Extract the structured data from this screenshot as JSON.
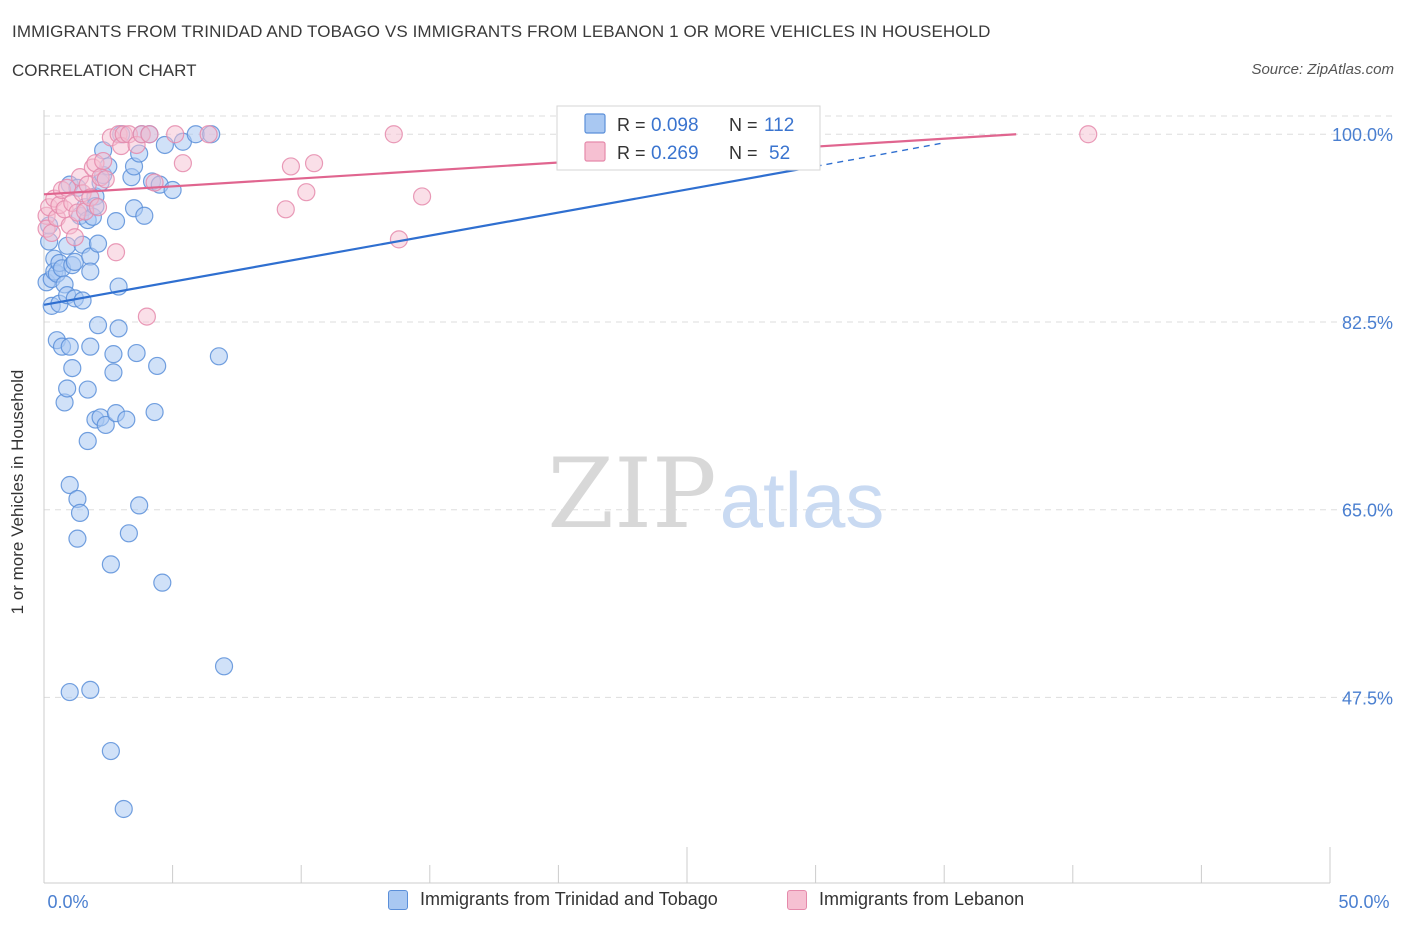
{
  "header": {
    "title": "IMMIGRANTS FROM TRINIDAD AND TOBAGO VS IMMIGRANTS FROM LEBANON 1 OR MORE VEHICLES IN HOUSEHOLD",
    "subtitle": "CORRELATION CHART",
    "source": "Source: ZipAtlas.com"
  },
  "watermark": {
    "zip": "ZIP",
    "atlas": "atlas"
  },
  "colors": {
    "blue": "#5b8fd9",
    "blue_fill": "#a9c8f2",
    "blue_line": "#2f6fd0",
    "pink": "#e58aab",
    "pink_fill": "#f6c0d2",
    "pink_line": "#e0658f",
    "tick_label": "#4a7fd0",
    "grid": "#dddddd"
  },
  "stats": [
    {
      "r_label": "R =",
      "r": "0.098",
      "n_label": "N =",
      "n": "112"
    },
    {
      "r_label": "R =",
      "r": "0.269",
      "n_label": "N =",
      "n": "52"
    }
  ],
  "chart_data": {
    "type": "scatter",
    "title": "IMMIGRANTS FROM TRINIDAD AND TOBAGO VS IMMIGRANTS FROM LEBANON 1 OR MORE VEHICLES IN HOUSEHOLD",
    "xlabel": "",
    "ylabel": "1 or more Vehicles in Household",
    "xlim": [
      0,
      50
    ],
    "ylim": [
      30.2,
      101.7
    ],
    "x_tick_labels": [
      "0.0%",
      "50.0%"
    ],
    "y_ticks": [
      47.5,
      65.0,
      82.5,
      100.0
    ],
    "y_tick_labels": [
      "47.5%",
      "65.0%",
      "82.5%",
      "100.0%"
    ],
    "grid": true,
    "legend_position": "bottom",
    "series": [
      {
        "name": "Immigrants from Trinidad and Tobago",
        "color": "blue",
        "trend": {
          "x": [
            0.0,
            30.0
          ],
          "y": [
            84.1,
            97.0
          ],
          "dashed_to": [
            35.0,
            99.2
          ]
        },
        "points": [
          [
            0.1,
            86.2
          ],
          [
            0.2,
            90.0
          ],
          [
            0.2,
            91.5
          ],
          [
            0.3,
            84.0
          ],
          [
            0.3,
            86.5
          ],
          [
            0.4,
            88.4
          ],
          [
            0.4,
            87.2
          ],
          [
            0.5,
            87.0
          ],
          [
            0.5,
            80.8
          ],
          [
            0.6,
            88.0
          ],
          [
            0.6,
            84.2
          ],
          [
            0.7,
            87.5
          ],
          [
            0.7,
            80.2
          ],
          [
            0.8,
            75.0
          ],
          [
            0.8,
            86.0
          ],
          [
            0.9,
            89.6
          ],
          [
            0.9,
            85.0
          ],
          [
            0.9,
            76.3
          ],
          [
            1.0,
            80.2
          ],
          [
            1.0,
            95.3
          ],
          [
            1.0,
            48.0
          ],
          [
            1.0,
            67.3
          ],
          [
            1.1,
            78.2
          ],
          [
            1.1,
            87.8
          ],
          [
            1.2,
            84.7
          ],
          [
            1.2,
            88.1
          ],
          [
            1.3,
            95.0
          ],
          [
            1.3,
            66.0
          ],
          [
            1.3,
            62.3
          ],
          [
            1.4,
            64.7
          ],
          [
            1.4,
            92.4
          ],
          [
            1.5,
            89.7
          ],
          [
            1.5,
            84.5
          ],
          [
            1.6,
            93.2
          ],
          [
            1.7,
            71.4
          ],
          [
            1.7,
            92.0
          ],
          [
            1.7,
            76.2
          ],
          [
            1.8,
            88.6
          ],
          [
            1.8,
            87.2
          ],
          [
            1.8,
            48.2
          ],
          [
            1.8,
            80.2
          ],
          [
            1.9,
            92.3
          ],
          [
            2.0,
            94.2
          ],
          [
            2.0,
            73.4
          ],
          [
            2.0,
            93.3
          ],
          [
            2.1,
            82.2
          ],
          [
            2.1,
            89.8
          ],
          [
            2.2,
            73.6
          ],
          [
            2.2,
            95.5
          ],
          [
            2.3,
            98.5
          ],
          [
            2.3,
            96.2
          ],
          [
            2.4,
            72.9
          ],
          [
            2.5,
            97.0
          ],
          [
            2.6,
            59.9
          ],
          [
            2.6,
            42.5
          ],
          [
            2.7,
            79.5
          ],
          [
            2.7,
            77.8
          ],
          [
            2.8,
            91.9
          ],
          [
            2.8,
            74.0
          ],
          [
            2.9,
            85.8
          ],
          [
            2.9,
            81.9
          ],
          [
            3.0,
            100.0
          ],
          [
            3.1,
            37.1
          ],
          [
            3.2,
            73.4
          ],
          [
            3.3,
            62.8
          ],
          [
            3.4,
            96.0
          ],
          [
            3.5,
            93.1
          ],
          [
            3.5,
            97.0
          ],
          [
            3.6,
            79.6
          ],
          [
            3.7,
            98.2
          ],
          [
            3.7,
            65.4
          ],
          [
            3.8,
            100.0
          ],
          [
            3.9,
            92.4
          ],
          [
            4.1,
            100.0
          ],
          [
            4.2,
            95.6
          ],
          [
            4.3,
            74.1
          ],
          [
            4.4,
            78.4
          ],
          [
            4.5,
            95.3
          ],
          [
            4.6,
            58.2
          ],
          [
            4.7,
            99.0
          ],
          [
            5.0,
            94.8
          ],
          [
            5.4,
            99.3
          ],
          [
            5.9,
            100.0
          ],
          [
            6.5,
            100.0
          ],
          [
            6.8,
            79.3
          ],
          [
            7.0,
            50.4
          ],
          [
            28.7,
            100.0
          ]
        ]
      },
      {
        "name": "Immigrants from Lebanon",
        "color": "pink",
        "trend": {
          "x": [
            0.0,
            37.8
          ],
          "y": [
            94.4,
            100.0
          ]
        },
        "points": [
          [
            0.1,
            92.4
          ],
          [
            0.1,
            91.2
          ],
          [
            0.2,
            93.2
          ],
          [
            0.3,
            90.8
          ],
          [
            0.4,
            94.0
          ],
          [
            0.5,
            92.2
          ],
          [
            0.6,
            93.4
          ],
          [
            0.7,
            94.8
          ],
          [
            0.8,
            93.0
          ],
          [
            0.9,
            95.0
          ],
          [
            1.0,
            91.5
          ],
          [
            1.1,
            93.6
          ],
          [
            1.2,
            90.4
          ],
          [
            1.3,
            92.7
          ],
          [
            1.4,
            96.0
          ],
          [
            1.5,
            94.5
          ],
          [
            1.6,
            92.8
          ],
          [
            1.7,
            95.3
          ],
          [
            1.8,
            94.1
          ],
          [
            1.9,
            96.9
          ],
          [
            2.0,
            97.3
          ],
          [
            2.1,
            93.2
          ],
          [
            2.2,
            96.0
          ],
          [
            2.3,
            97.5
          ],
          [
            2.4,
            95.8
          ],
          [
            2.6,
            99.7
          ],
          [
            2.8,
            89.0
          ],
          [
            2.9,
            100.0
          ],
          [
            3.0,
            98.9
          ],
          [
            3.1,
            100.0
          ],
          [
            3.3,
            100.0
          ],
          [
            3.6,
            99.0
          ],
          [
            3.8,
            100.0
          ],
          [
            4.0,
            83.0
          ],
          [
            4.1,
            100.0
          ],
          [
            4.3,
            95.5
          ],
          [
            5.1,
            100.0
          ],
          [
            5.4,
            97.3
          ],
          [
            6.4,
            100.0
          ],
          [
            9.4,
            93.0
          ],
          [
            9.6,
            97.0
          ],
          [
            10.2,
            94.6
          ],
          [
            10.5,
            97.3
          ],
          [
            13.6,
            100.0
          ],
          [
            13.8,
            90.2
          ],
          [
            14.7,
            94.2
          ],
          [
            40.6,
            100.0
          ]
        ]
      }
    ]
  },
  "legend": {
    "items": [
      {
        "label": "Immigrants from Trinidad and Tobago",
        "color": "blue"
      },
      {
        "label": "Immigrants from Lebanon",
        "color": "pink"
      }
    ]
  }
}
